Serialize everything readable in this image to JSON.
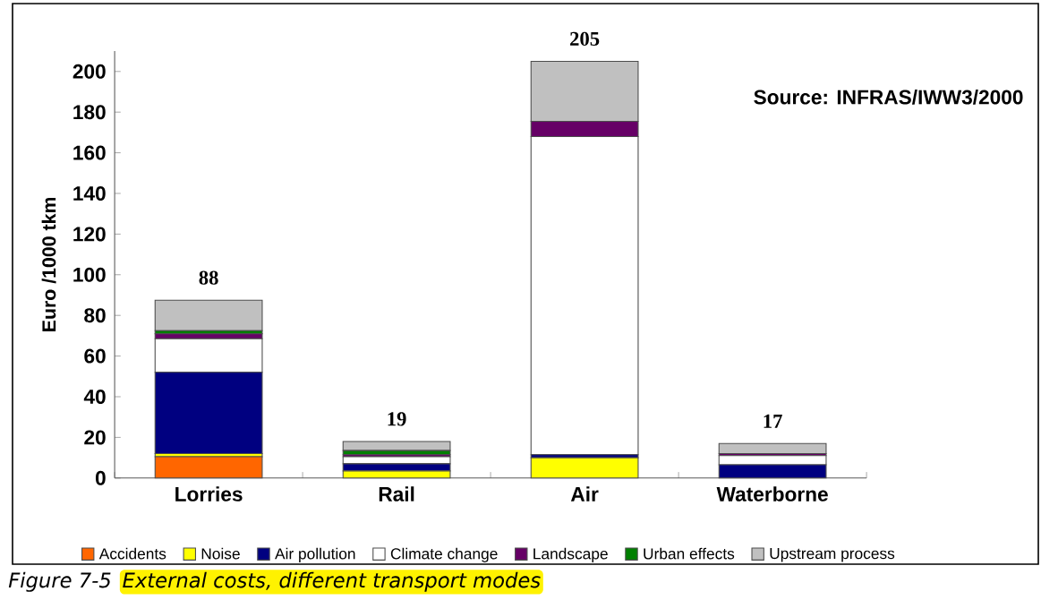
{
  "chart_data": {
    "type": "bar",
    "stacked": true,
    "ylabel": "Euro /1000  tkm",
    "categories": [
      "Lorries",
      "Rail",
      "Air",
      "Waterborne"
    ],
    "series": [
      {
        "name": "Accidents",
        "color": "#ff6600",
        "values": [
          10.5,
          0,
          0,
          0
        ]
      },
      {
        "name": "Noise",
        "color": "#ffff00",
        "values": [
          1.5,
          3.5,
          10,
          0
        ]
      },
      {
        "name": "Air pollution",
        "color": "#000080",
        "values": [
          40,
          3.5,
          1.5,
          6.5
        ]
      },
      {
        "name": "Climate change",
        "color": "#ffffff",
        "values": [
          16.5,
          3.5,
          156.5,
          4.5
        ]
      },
      {
        "name": "Landscape",
        "color": "#660066",
        "values": [
          2.5,
          1,
          7.5,
          1
        ]
      },
      {
        "name": "Urban effects",
        "color": "#008000",
        "values": [
          1.5,
          2,
          0,
          0
        ]
      },
      {
        "name": "Upstream process",
        "color": "#c0c0c0",
        "values": [
          15,
          4.5,
          29.5,
          5
        ]
      }
    ],
    "totals": [
      "88",
      "19",
      "205",
      "17"
    ],
    "ylim": [
      0,
      210
    ],
    "yticks": [
      0,
      20,
      40,
      60,
      80,
      100,
      120,
      140,
      160,
      180,
      200
    ],
    "grid": false,
    "legend": "bottom",
    "annotations": [
      "Source: INFRAS/IWW3/2000",
      "Figure 7-5",
      "External costs, different transport modes"
    ]
  }
}
